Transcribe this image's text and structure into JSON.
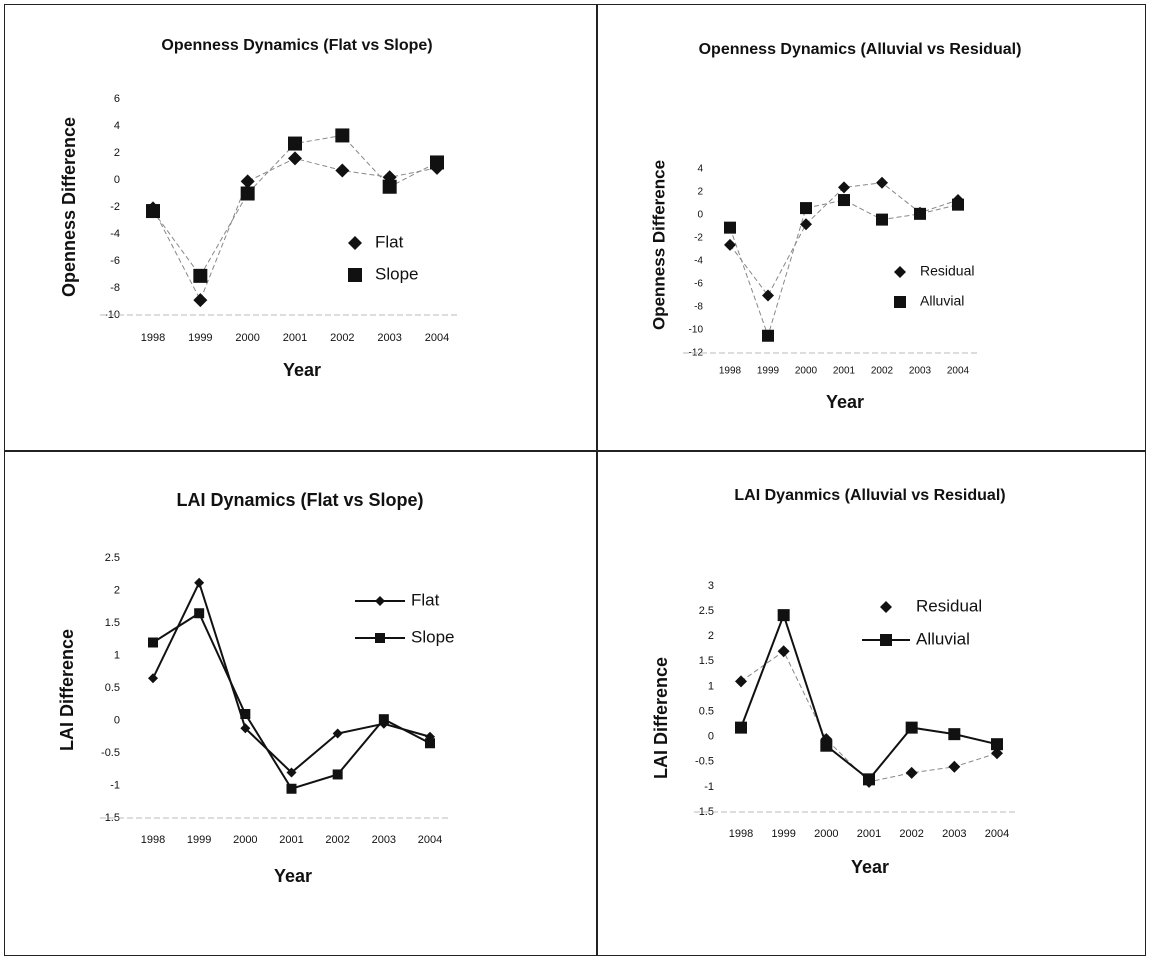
{
  "chart_data": [
    {
      "type": "line",
      "title": "Openness Dynamics (Flat vs Slope)",
      "x_label": "Year",
      "y_label": "Openness Difference",
      "categories": [
        "1998",
        "1999",
        "2000",
        "2001",
        "2002",
        "2003",
        "2004"
      ],
      "ylim": [
        -10,
        6
      ],
      "yticks": [
        -10,
        -8,
        -6,
        -4,
        -2,
        0,
        2,
        4,
        6
      ],
      "series": [
        {
          "name": "Flat",
          "color": "#111111",
          "marker": "diamond",
          "line": "dashed",
          "values": [
            -2.1,
            -8.9,
            -0.1,
            1.6,
            0.7,
            0.2,
            0.9
          ]
        },
        {
          "name": "Slope",
          "color": "#111111",
          "marker": "square",
          "line": "dashed",
          "values": [
            -2.3,
            -7.1,
            -1.0,
            2.7,
            3.3,
            -0.5,
            1.3
          ]
        }
      ]
    },
    {
      "type": "line",
      "title": "Openness Dynamics (Alluvial vs Residual)",
      "x_label": "Year",
      "y_label": "Openness Difference",
      "categories": [
        "1998",
        "1999",
        "2000",
        "2001",
        "2002",
        "2003",
        "2004"
      ],
      "ylim": [
        -12,
        4
      ],
      "yticks": [
        -12,
        -10,
        -8,
        -6,
        -4,
        -2,
        0,
        2,
        4
      ],
      "series": [
        {
          "name": "Residual",
          "color": "#111111",
          "marker": "diamond",
          "line": "dashed",
          "values": [
            -2.6,
            -7.0,
            -0.8,
            2.4,
            2.8,
            0.2,
            1.3
          ]
        },
        {
          "name": "Alluvial",
          "color": "#111111",
          "marker": "square",
          "line": "dashed",
          "values": [
            -1.1,
            -10.5,
            0.6,
            1.3,
            -0.4,
            0.1,
            0.9
          ]
        }
      ]
    },
    {
      "type": "line",
      "title": "LAI Dynamics (Flat vs Slope)",
      "x_label": "Year",
      "y_label": "LAI Difference",
      "categories": [
        "1998",
        "1999",
        "2000",
        "2001",
        "2002",
        "2003",
        "2004"
      ],
      "ylim": [
        -1.5,
        2.5
      ],
      "yticks": [
        -1.5,
        -1,
        -0.5,
        0,
        0.5,
        1,
        1.5,
        2,
        2.5
      ],
      "series": [
        {
          "name": "Flat",
          "color": "#111111",
          "marker": "diamond",
          "line": "solid",
          "values": [
            0.65,
            2.12,
            -0.12,
            -0.8,
            -0.2,
            -0.05,
            -0.25
          ]
        },
        {
          "name": "Slope",
          "color": "#111111",
          "marker": "square",
          "line": "solid",
          "values": [
            1.2,
            1.65,
            0.1,
            -1.05,
            -0.83,
            0.02,
            -0.35
          ]
        }
      ]
    },
    {
      "type": "line",
      "title": "LAI Dyanmics (Alluvial vs Residual)",
      "x_label": "Year",
      "y_label": "LAI  Difference",
      "categories": [
        "1998",
        "1999",
        "2000",
        "2001",
        "2002",
        "2003",
        "2004"
      ],
      "ylim": [
        -1.5,
        3
      ],
      "yticks": [
        -1.5,
        -1,
        -0.5,
        0,
        0.5,
        1,
        1.5,
        2,
        2.5,
        3
      ],
      "series": [
        {
          "name": "Residual",
          "color": "#111111",
          "marker": "diamond",
          "line": "dashed",
          "values": [
            1.1,
            1.7,
            -0.05,
            -0.9,
            -0.72,
            -0.6,
            -0.33
          ]
        },
        {
          "name": "Alluvial",
          "color": "#111111",
          "marker": "square",
          "line": "solid",
          "values": [
            0.18,
            2.42,
            -0.18,
            -0.85,
            0.18,
            0.05,
            -0.15
          ]
        }
      ]
    }
  ]
}
